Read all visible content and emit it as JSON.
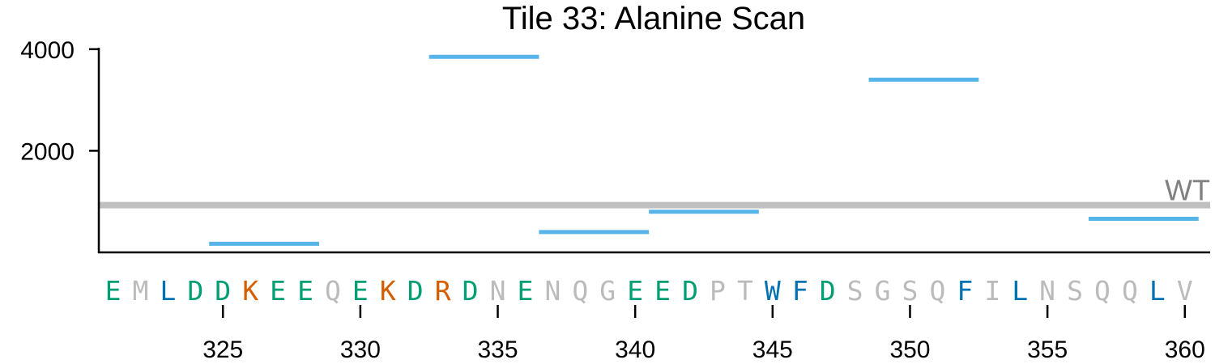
{
  "chart_data": {
    "type": "line",
    "title": "Tile 33: Alanine Scan",
    "xlabel": "",
    "ylabel": "",
    "xlim": [
      321,
      361
    ],
    "ylim": [
      0,
      4000
    ],
    "yticks": [
      {
        "value": 2000,
        "label": "2000"
      },
      {
        "value": 4000,
        "label": "4000"
      }
    ],
    "xticks": [
      {
        "value": 325,
        "label": "325"
      },
      {
        "value": 330,
        "label": "330"
      },
      {
        "value": 335,
        "label": "335"
      },
      {
        "value": 340,
        "label": "340"
      },
      {
        "value": 345,
        "label": "345"
      },
      {
        "value": 350,
        "label": "350"
      },
      {
        "value": 355,
        "label": "355"
      },
      {
        "value": 360,
        "label": "360"
      }
    ],
    "reference": {
      "label": "WT",
      "value": 930,
      "color": "#c0c0c0",
      "label_color": "#808080"
    },
    "segment_color": "#56b4e9",
    "segments": [
      {
        "x_start": 324.5,
        "x_end": 328.5,
        "value": 170
      },
      {
        "x_start": 332.5,
        "x_end": 336.5,
        "value": 3850
      },
      {
        "x_start": 336.5,
        "x_end": 340.5,
        "value": 400
      },
      {
        "x_start": 340.5,
        "x_end": 344.5,
        "value": 800
      },
      {
        "x_start": 348.5,
        "x_end": 352.5,
        "value": 3400
      },
      {
        "x_start": 356.5,
        "x_end": 360.5,
        "value": 660
      }
    ],
    "residues": [
      {
        "pos": 321,
        "aa": "E",
        "color": "#009e73"
      },
      {
        "pos": 322,
        "aa": "M",
        "color": "#bbbbbb"
      },
      {
        "pos": 323,
        "aa": "L",
        "color": "#0072b2"
      },
      {
        "pos": 324,
        "aa": "D",
        "color": "#009e73"
      },
      {
        "pos": 325,
        "aa": "D",
        "color": "#009e73"
      },
      {
        "pos": 326,
        "aa": "K",
        "color": "#d55e00"
      },
      {
        "pos": 327,
        "aa": "E",
        "color": "#009e73"
      },
      {
        "pos": 328,
        "aa": "E",
        "color": "#009e73"
      },
      {
        "pos": 329,
        "aa": "Q",
        "color": "#bbbbbb"
      },
      {
        "pos": 330,
        "aa": "E",
        "color": "#009e73"
      },
      {
        "pos": 331,
        "aa": "K",
        "color": "#d55e00"
      },
      {
        "pos": 332,
        "aa": "D",
        "color": "#009e73"
      },
      {
        "pos": 333,
        "aa": "R",
        "color": "#d55e00"
      },
      {
        "pos": 334,
        "aa": "D",
        "color": "#009e73"
      },
      {
        "pos": 335,
        "aa": "N",
        "color": "#bbbbbb"
      },
      {
        "pos": 336,
        "aa": "E",
        "color": "#009e73"
      },
      {
        "pos": 337,
        "aa": "N",
        "color": "#bbbbbb"
      },
      {
        "pos": 338,
        "aa": "Q",
        "color": "#bbbbbb"
      },
      {
        "pos": 339,
        "aa": "G",
        "color": "#bbbbbb"
      },
      {
        "pos": 340,
        "aa": "E",
        "color": "#009e73"
      },
      {
        "pos": 341,
        "aa": "E",
        "color": "#009e73"
      },
      {
        "pos": 342,
        "aa": "D",
        "color": "#009e73"
      },
      {
        "pos": 343,
        "aa": "P",
        "color": "#bbbbbb"
      },
      {
        "pos": 344,
        "aa": "T",
        "color": "#bbbbbb"
      },
      {
        "pos": 345,
        "aa": "W",
        "color": "#0072b2"
      },
      {
        "pos": 346,
        "aa": "F",
        "color": "#0072b2"
      },
      {
        "pos": 347,
        "aa": "D",
        "color": "#009e73"
      },
      {
        "pos": 348,
        "aa": "S",
        "color": "#bbbbbb"
      },
      {
        "pos": 349,
        "aa": "G",
        "color": "#bbbbbb"
      },
      {
        "pos": 350,
        "aa": "S",
        "color": "#bbbbbb"
      },
      {
        "pos": 351,
        "aa": "Q",
        "color": "#bbbbbb"
      },
      {
        "pos": 352,
        "aa": "F",
        "color": "#0072b2"
      },
      {
        "pos": 353,
        "aa": "I",
        "color": "#bbbbbb"
      },
      {
        "pos": 354,
        "aa": "L",
        "color": "#0072b2"
      },
      {
        "pos": 355,
        "aa": "N",
        "color": "#bbbbbb"
      },
      {
        "pos": 356,
        "aa": "S",
        "color": "#bbbbbb"
      },
      {
        "pos": 357,
        "aa": "Q",
        "color": "#bbbbbb"
      },
      {
        "pos": 358,
        "aa": "Q",
        "color": "#bbbbbb"
      },
      {
        "pos": 359,
        "aa": "L",
        "color": "#0072b2"
      },
      {
        "pos": 360,
        "aa": "V",
        "color": "#bbbbbb"
      }
    ]
  }
}
